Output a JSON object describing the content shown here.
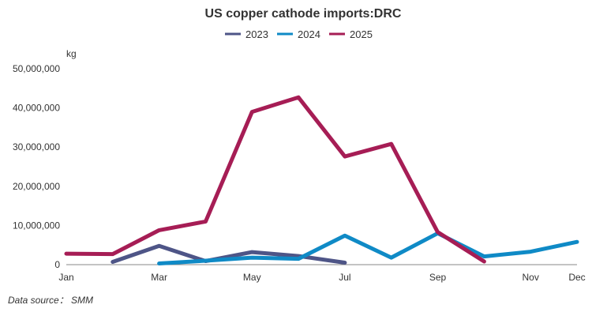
{
  "chart_data": {
    "type": "line",
    "title": "US copper cathode imports:DRC",
    "unit_label": "kg",
    "source": "Data source： SMM",
    "x_tick_labels": [
      "Jan",
      "Mar",
      "May",
      "Jul",
      "Sep",
      "Nov",
      "Dec"
    ],
    "x_tick_months": [
      1,
      3,
      5,
      7,
      9,
      11,
      12
    ],
    "y_tick_labels": [
      "0",
      "10,000,000",
      "20,000,000",
      "30,000,000",
      "40,000,000",
      "50,000,000"
    ],
    "y_tick_values": [
      0,
      10000000,
      20000000,
      30000000,
      40000000,
      50000000
    ],
    "ylim": [
      0,
      50000000
    ],
    "xlim": [
      1,
      12
    ],
    "legend_position": "top-center",
    "grid": false,
    "series": [
      {
        "name": "2023",
        "color": "#4e5587",
        "x": [
          2,
          3,
          4,
          5,
          6,
          7
        ],
        "values": [
          700000,
          4800000,
          900000,
          3200000,
          2200000,
          500000
        ]
      },
      {
        "name": "2024",
        "color": "#0f8ac6",
        "x": [
          3,
          4,
          5,
          6,
          7,
          8,
          9,
          10,
          11,
          12
        ],
        "values": [
          300000,
          1000000,
          1800000,
          1500000,
          7400000,
          1800000,
          8000000,
          2100000,
          3300000,
          5800000
        ]
      },
      {
        "name": "2025",
        "color": "#a61d55",
        "x": [
          1,
          2,
          3,
          4,
          5,
          6,
          7,
          8,
          9,
          10
        ],
        "values": [
          2800000,
          2700000,
          8800000,
          11000000,
          39000000,
          42700000,
          27600000,
          30800000,
          8300000,
          800000
        ]
      }
    ]
  }
}
